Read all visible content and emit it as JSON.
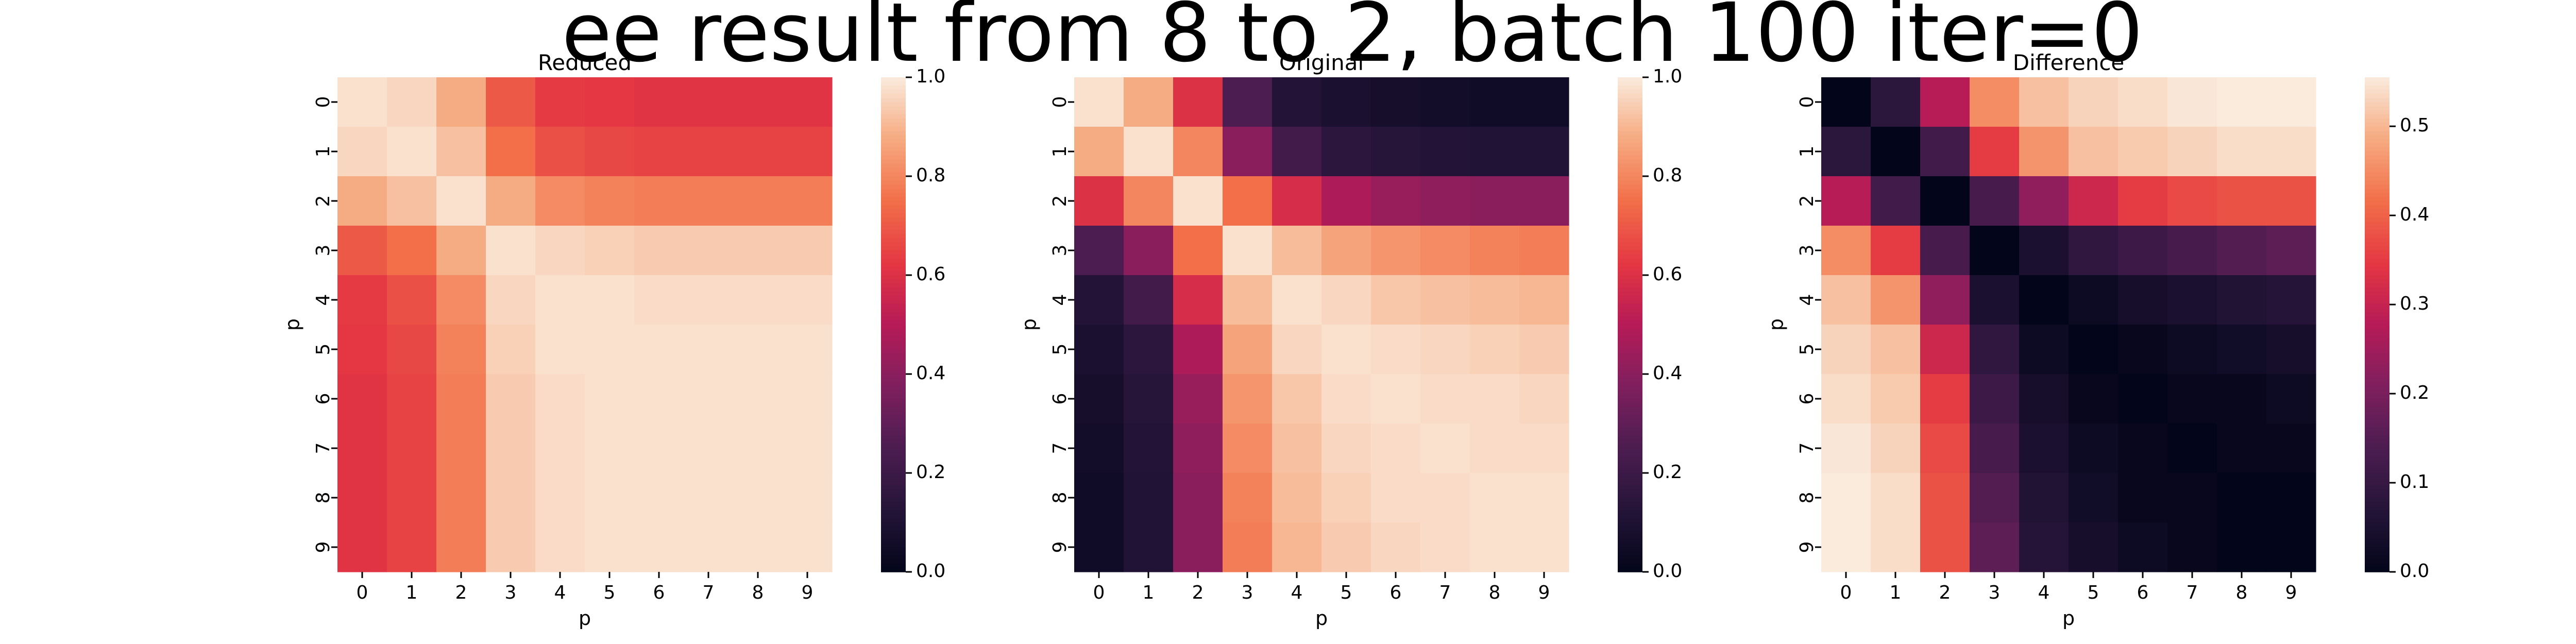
{
  "figure": {
    "suptitle": "ee result from 8 to 2, batch 100 iter=0"
  },
  "chart_data": [
    {
      "type": "heatmap",
      "title": "Reduced",
      "xlabel": "p",
      "ylabel": "p",
      "x_categories": [
        "0",
        "1",
        "2",
        "3",
        "4",
        "5",
        "6",
        "7",
        "8",
        "9"
      ],
      "y_categories": [
        "0",
        "1",
        "2",
        "3",
        "4",
        "5",
        "6",
        "7",
        "8",
        "9"
      ],
      "colormap": "rocket",
      "vmin": 0.0,
      "vmax": 1.0,
      "colorbar_ticks": [
        0.0,
        0.2,
        0.4,
        0.6,
        0.8,
        1.0
      ],
      "colorbar_tick_labels": [
        "0.0",
        "0.2",
        "0.4",
        "0.6",
        "0.8",
        "1.0"
      ],
      "values": [
        [
          0.98,
          0.96,
          0.88,
          0.7,
          0.63,
          0.62,
          0.61,
          0.61,
          0.61,
          0.61
        ],
        [
          0.96,
          0.98,
          0.92,
          0.75,
          0.68,
          0.66,
          0.65,
          0.65,
          0.65,
          0.65
        ],
        [
          0.88,
          0.92,
          0.98,
          0.88,
          0.81,
          0.79,
          0.78,
          0.78,
          0.78,
          0.78
        ],
        [
          0.7,
          0.75,
          0.88,
          0.98,
          0.96,
          0.95,
          0.94,
          0.94,
          0.94,
          0.94
        ],
        [
          0.63,
          0.68,
          0.81,
          0.96,
          0.98,
          0.98,
          0.97,
          0.97,
          0.97,
          0.97
        ],
        [
          0.62,
          0.66,
          0.79,
          0.95,
          0.98,
          0.98,
          0.98,
          0.98,
          0.98,
          0.98
        ],
        [
          0.61,
          0.65,
          0.78,
          0.94,
          0.97,
          0.98,
          0.98,
          0.98,
          0.98,
          0.98
        ],
        [
          0.61,
          0.65,
          0.78,
          0.94,
          0.97,
          0.98,
          0.98,
          0.98,
          0.98,
          0.98
        ],
        [
          0.61,
          0.65,
          0.78,
          0.94,
          0.97,
          0.98,
          0.98,
          0.98,
          0.98,
          0.98
        ],
        [
          0.61,
          0.65,
          0.78,
          0.94,
          0.97,
          0.98,
          0.98,
          0.98,
          0.98,
          0.98
        ]
      ]
    },
    {
      "type": "heatmap",
      "title": "Original",
      "xlabel": "p",
      "ylabel": "p",
      "x_categories": [
        "0",
        "1",
        "2",
        "3",
        "4",
        "5",
        "6",
        "7",
        "8",
        "9"
      ],
      "y_categories": [
        "0",
        "1",
        "2",
        "3",
        "4",
        "5",
        "6",
        "7",
        "8",
        "9"
      ],
      "colormap": "rocket",
      "vmin": 0.0,
      "vmax": 1.0,
      "colorbar_ticks": [
        0.0,
        0.2,
        0.4,
        0.6,
        0.8,
        1.0
      ],
      "colorbar_tick_labels": [
        "0.0",
        "0.2",
        "0.4",
        "0.6",
        "0.8",
        "1.0"
      ],
      "values": [
        [
          0.98,
          0.88,
          0.6,
          0.25,
          0.12,
          0.09,
          0.07,
          0.06,
          0.05,
          0.05
        ],
        [
          0.88,
          0.98,
          0.8,
          0.4,
          0.22,
          0.15,
          0.13,
          0.12,
          0.11,
          0.11
        ],
        [
          0.6,
          0.8,
          0.98,
          0.75,
          0.58,
          0.48,
          0.43,
          0.41,
          0.4,
          0.4
        ],
        [
          0.25,
          0.4,
          0.75,
          0.98,
          0.91,
          0.86,
          0.83,
          0.81,
          0.79,
          0.78
        ],
        [
          0.12,
          0.22,
          0.58,
          0.91,
          0.98,
          0.96,
          0.93,
          0.92,
          0.91,
          0.9
        ],
        [
          0.09,
          0.15,
          0.48,
          0.86,
          0.96,
          0.98,
          0.97,
          0.96,
          0.95,
          0.94
        ],
        [
          0.07,
          0.13,
          0.43,
          0.83,
          0.93,
          0.97,
          0.98,
          0.97,
          0.97,
          0.96
        ],
        [
          0.06,
          0.12,
          0.41,
          0.81,
          0.92,
          0.96,
          0.97,
          0.98,
          0.97,
          0.97
        ],
        [
          0.05,
          0.11,
          0.4,
          0.79,
          0.91,
          0.95,
          0.97,
          0.97,
          0.98,
          0.98
        ],
        [
          0.05,
          0.11,
          0.4,
          0.78,
          0.9,
          0.94,
          0.96,
          0.97,
          0.98,
          0.98
        ]
      ]
    },
    {
      "type": "heatmap",
      "title": "Difference",
      "xlabel": "p",
      "ylabel": "p",
      "x_categories": [
        "0",
        "1",
        "2",
        "3",
        "4",
        "5",
        "6",
        "7",
        "8",
        "9"
      ],
      "y_categories": [
        "0",
        "1",
        "2",
        "3",
        "4",
        "5",
        "6",
        "7",
        "8",
        "9"
      ],
      "colormap": "rocket",
      "vmin": 0.0,
      "vmax": 0.555,
      "colorbar_ticks": [
        0.0,
        0.1,
        0.2,
        0.3,
        0.4,
        0.5
      ],
      "colorbar_tick_labels": [
        "0.0",
        "0.1",
        "0.2",
        "0.3",
        "0.4",
        "0.5"
      ],
      "values": [
        [
          0.0,
          0.08,
          0.28,
          0.45,
          0.51,
          0.53,
          0.54,
          0.55,
          0.56,
          0.56
        ],
        [
          0.08,
          0.0,
          0.12,
          0.35,
          0.46,
          0.51,
          0.52,
          0.53,
          0.54,
          0.54
        ],
        [
          0.28,
          0.12,
          0.0,
          0.13,
          0.23,
          0.31,
          0.35,
          0.37,
          0.38,
          0.38
        ],
        [
          0.45,
          0.35,
          0.13,
          0.0,
          0.05,
          0.09,
          0.11,
          0.13,
          0.15,
          0.16
        ],
        [
          0.51,
          0.46,
          0.23,
          0.05,
          0.0,
          0.02,
          0.04,
          0.05,
          0.06,
          0.07
        ],
        [
          0.53,
          0.51,
          0.31,
          0.09,
          0.02,
          0.0,
          0.01,
          0.02,
          0.03,
          0.04
        ],
        [
          0.54,
          0.52,
          0.35,
          0.11,
          0.04,
          0.01,
          0.0,
          0.01,
          0.01,
          0.02
        ],
        [
          0.55,
          0.53,
          0.37,
          0.13,
          0.05,
          0.02,
          0.01,
          0.0,
          0.01,
          0.01
        ],
        [
          0.56,
          0.54,
          0.38,
          0.15,
          0.06,
          0.03,
          0.01,
          0.01,
          0.0,
          0.0
        ],
        [
          0.56,
          0.54,
          0.38,
          0.16,
          0.07,
          0.04,
          0.02,
          0.01,
          0.0,
          0.0
        ]
      ]
    }
  ]
}
